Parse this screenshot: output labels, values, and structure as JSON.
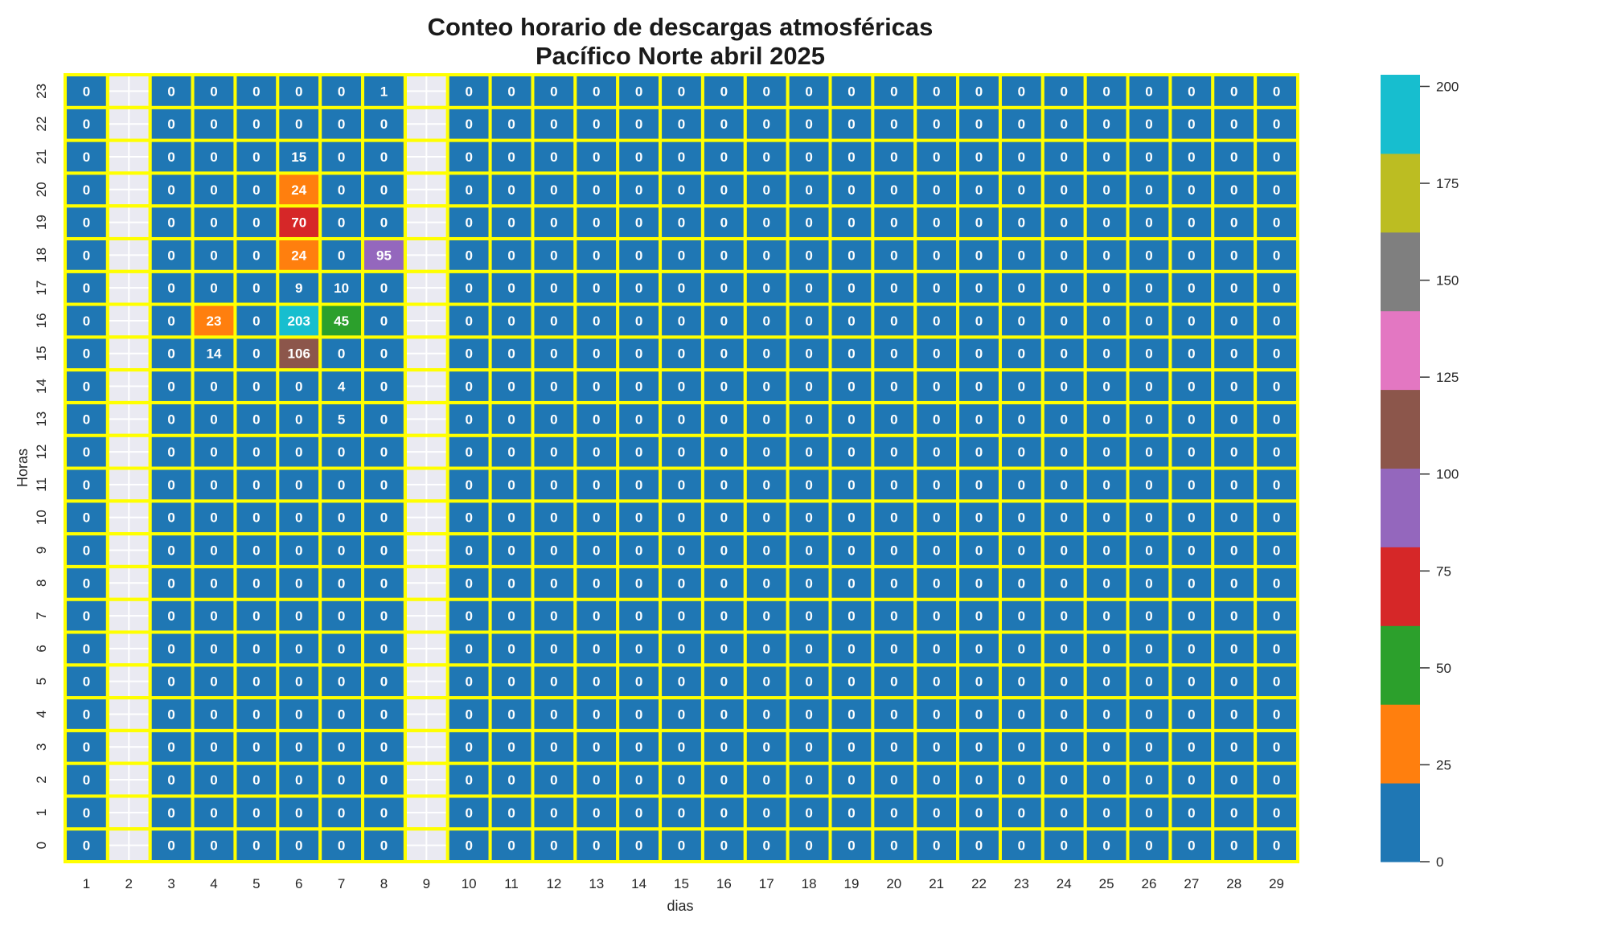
{
  "chart_data": {
    "type": "heatmap",
    "title_line1": "Conteo horario de descargas atmosféricas",
    "title_line2": "Pacífico Norte abril 2025",
    "xlabel": "dias",
    "ylabel": "Horas",
    "x": [
      1,
      2,
      3,
      4,
      5,
      6,
      7,
      8,
      9,
      10,
      11,
      12,
      13,
      14,
      15,
      16,
      17,
      18,
      19,
      20,
      21,
      22,
      23,
      24,
      25,
      26,
      27,
      28,
      29
    ],
    "y": [
      0,
      1,
      2,
      3,
      4,
      5,
      6,
      7,
      8,
      9,
      10,
      11,
      12,
      13,
      14,
      15,
      16,
      17,
      18,
      19,
      20,
      21,
      22,
      23
    ],
    "values": [
      [
        0,
        null,
        0,
        0,
        0,
        0,
        0,
        0,
        null,
        0,
        0,
        0,
        0,
        0,
        0,
        0,
        0,
        0,
        0,
        0,
        0,
        0,
        0,
        0,
        0,
        0,
        0,
        0,
        0
      ],
      [
        0,
        null,
        0,
        0,
        0,
        0,
        0,
        0,
        null,
        0,
        0,
        0,
        0,
        0,
        0,
        0,
        0,
        0,
        0,
        0,
        0,
        0,
        0,
        0,
        0,
        0,
        0,
        0,
        0
      ],
      [
        0,
        null,
        0,
        0,
        0,
        0,
        0,
        0,
        null,
        0,
        0,
        0,
        0,
        0,
        0,
        0,
        0,
        0,
        0,
        0,
        0,
        0,
        0,
        0,
        0,
        0,
        0,
        0,
        0
      ],
      [
        0,
        null,
        0,
        0,
        0,
        0,
        0,
        0,
        null,
        0,
        0,
        0,
        0,
        0,
        0,
        0,
        0,
        0,
        0,
        0,
        0,
        0,
        0,
        0,
        0,
        0,
        0,
        0,
        0
      ],
      [
        0,
        null,
        0,
        0,
        0,
        0,
        0,
        0,
        null,
        0,
        0,
        0,
        0,
        0,
        0,
        0,
        0,
        0,
        0,
        0,
        0,
        0,
        0,
        0,
        0,
        0,
        0,
        0,
        0
      ],
      [
        0,
        null,
        0,
        0,
        0,
        0,
        0,
        0,
        null,
        0,
        0,
        0,
        0,
        0,
        0,
        0,
        0,
        0,
        0,
        0,
        0,
        0,
        0,
        0,
        0,
        0,
        0,
        0,
        0
      ],
      [
        0,
        null,
        0,
        0,
        0,
        0,
        0,
        0,
        null,
        0,
        0,
        0,
        0,
        0,
        0,
        0,
        0,
        0,
        0,
        0,
        0,
        0,
        0,
        0,
        0,
        0,
        0,
        0,
        0
      ],
      [
        0,
        null,
        0,
        0,
        0,
        0,
        0,
        0,
        null,
        0,
        0,
        0,
        0,
        0,
        0,
        0,
        0,
        0,
        0,
        0,
        0,
        0,
        0,
        0,
        0,
        0,
        0,
        0,
        0
      ],
      [
        0,
        null,
        0,
        0,
        0,
        0,
        0,
        0,
        null,
        0,
        0,
        0,
        0,
        0,
        0,
        0,
        0,
        0,
        0,
        0,
        0,
        0,
        0,
        0,
        0,
        0,
        0,
        0,
        0
      ],
      [
        0,
        null,
        0,
        0,
        0,
        0,
        0,
        0,
        null,
        0,
        0,
        0,
        0,
        0,
        0,
        0,
        0,
        0,
        0,
        0,
        0,
        0,
        0,
        0,
        0,
        0,
        0,
        0,
        0
      ],
      [
        0,
        null,
        0,
        0,
        0,
        0,
        0,
        0,
        null,
        0,
        0,
        0,
        0,
        0,
        0,
        0,
        0,
        0,
        0,
        0,
        0,
        0,
        0,
        0,
        0,
        0,
        0,
        0,
        0
      ],
      [
        0,
        null,
        0,
        0,
        0,
        0,
        0,
        0,
        null,
        0,
        0,
        0,
        0,
        0,
        0,
        0,
        0,
        0,
        0,
        0,
        0,
        0,
        0,
        0,
        0,
        0,
        0,
        0,
        0
      ],
      [
        0,
        null,
        0,
        0,
        0,
        0,
        0,
        0,
        null,
        0,
        0,
        0,
        0,
        0,
        0,
        0,
        0,
        0,
        0,
        0,
        0,
        0,
        0,
        0,
        0,
        0,
        0,
        0,
        0
      ],
      [
        0,
        null,
        0,
        0,
        0,
        0,
        5,
        0,
        null,
        0,
        0,
        0,
        0,
        0,
        0,
        0,
        0,
        0,
        0,
        0,
        0,
        0,
        0,
        0,
        0,
        0,
        0,
        0,
        0
      ],
      [
        0,
        null,
        0,
        0,
        0,
        0,
        4,
        0,
        null,
        0,
        0,
        0,
        0,
        0,
        0,
        0,
        0,
        0,
        0,
        0,
        0,
        0,
        0,
        0,
        0,
        0,
        0,
        0,
        0
      ],
      [
        0,
        null,
        0,
        14,
        0,
        106,
        0,
        0,
        null,
        0,
        0,
        0,
        0,
        0,
        0,
        0,
        0,
        0,
        0,
        0,
        0,
        0,
        0,
        0,
        0,
        0,
        0,
        0,
        0
      ],
      [
        0,
        null,
        0,
        23,
        0,
        203,
        45,
        0,
        null,
        0,
        0,
        0,
        0,
        0,
        0,
        0,
        0,
        0,
        0,
        0,
        0,
        0,
        0,
        0,
        0,
        0,
        0,
        0,
        0
      ],
      [
        0,
        null,
        0,
        0,
        0,
        9,
        10,
        0,
        null,
        0,
        0,
        0,
        0,
        0,
        0,
        0,
        0,
        0,
        0,
        0,
        0,
        0,
        0,
        0,
        0,
        0,
        0,
        0,
        0
      ],
      [
        0,
        null,
        0,
        0,
        0,
        24,
        0,
        95,
        null,
        0,
        0,
        0,
        0,
        0,
        0,
        0,
        0,
        0,
        0,
        0,
        0,
        0,
        0,
        0,
        0,
        0,
        0,
        0,
        0
      ],
      [
        0,
        null,
        0,
        0,
        0,
        70,
        0,
        0,
        null,
        0,
        0,
        0,
        0,
        0,
        0,
        0,
        0,
        0,
        0,
        0,
        0,
        0,
        0,
        0,
        0,
        0,
        0,
        0,
        0
      ],
      [
        0,
        null,
        0,
        0,
        0,
        24,
        0,
        0,
        null,
        0,
        0,
        0,
        0,
        0,
        0,
        0,
        0,
        0,
        0,
        0,
        0,
        0,
        0,
        0,
        0,
        0,
        0,
        0,
        0
      ],
      [
        0,
        null,
        0,
        0,
        0,
        15,
        0,
        0,
        null,
        0,
        0,
        0,
        0,
        0,
        0,
        0,
        0,
        0,
        0,
        0,
        0,
        0,
        0,
        0,
        0,
        0,
        0,
        0,
        0
      ],
      [
        0,
        null,
        0,
        0,
        0,
        0,
        0,
        0,
        null,
        0,
        0,
        0,
        0,
        0,
        0,
        0,
        0,
        0,
        0,
        0,
        0,
        0,
        0,
        0,
        0,
        0,
        0,
        0,
        0
      ],
      [
        0,
        null,
        0,
        0,
        0,
        0,
        0,
        1,
        null,
        0,
        0,
        0,
        0,
        0,
        0,
        0,
        0,
        0,
        0,
        0,
        0,
        0,
        0,
        0,
        0,
        0,
        0,
        0,
        0
      ]
    ],
    "colorbar": {
      "range": [
        0,
        203
      ],
      "ticks": [
        0,
        25,
        50,
        75,
        100,
        125,
        150,
        175,
        200
      ],
      "colors": [
        "#1f77b4",
        "#ff7f0e",
        "#2ca02c",
        "#d62728",
        "#9467bd",
        "#8c564b",
        "#e377c2",
        "#7f7f7f",
        "#bcbd22",
        "#17becf"
      ]
    },
    "grid_line_color": "#ffff00",
    "nan_color": "#eaeaf2"
  }
}
